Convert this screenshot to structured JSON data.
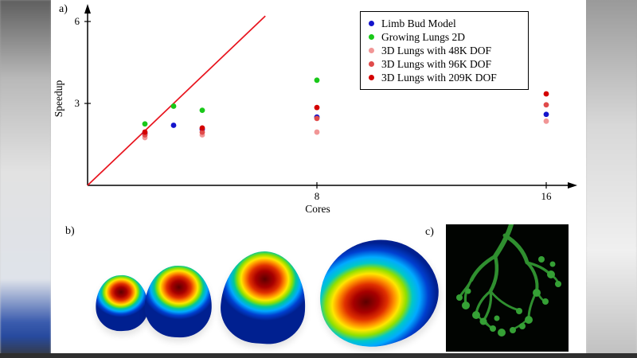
{
  "figure": {
    "panel_a_label": "a)",
    "panel_b_label": "b)",
    "panel_c_label": "c)"
  },
  "colors": {
    "ideal_line": "#e8141e",
    "panel_c_background": "#010401",
    "tree_green": "#2f8f2f",
    "figure_background": "#ffffff"
  },
  "chart_data": {
    "type": "scatter",
    "title": "",
    "xlabel": "Cores",
    "ylabel": "Speedup",
    "x_ticks": [
      8,
      16
    ],
    "y_ticks": [
      3,
      6
    ],
    "xlim": [
      0,
      17
    ],
    "ylim": [
      0,
      6.5
    ],
    "grid": false,
    "legend_position": "top-right",
    "ideal_line": {
      "from": [
        0,
        0
      ],
      "to": [
        6.2,
        6.2
      ],
      "color": "#e8141e"
    },
    "series": [
      {
        "name": "Limb Bud Model",
        "color": "#1414cc",
        "points": [
          [
            2,
            1.9
          ],
          [
            3,
            2.2
          ],
          [
            4,
            2.05
          ],
          [
            8,
            2.5
          ],
          [
            16,
            2.6
          ]
        ]
      },
      {
        "name": "Growing Lungs 2D",
        "color": "#19c819",
        "points": [
          [
            2,
            2.25
          ],
          [
            3,
            2.9
          ],
          [
            4,
            2.75
          ],
          [
            8,
            3.85
          ]
        ]
      },
      {
        "name": "3D Lungs with 48K DOF",
        "color": "#f19696",
        "points": [
          [
            2,
            1.75
          ],
          [
            4,
            1.85
          ],
          [
            8,
            1.95
          ],
          [
            16,
            2.35
          ]
        ]
      },
      {
        "name": "3D Lungs with 96K DOF",
        "color": "#e04b4b",
        "points": [
          [
            2,
            1.85
          ],
          [
            4,
            1.95
          ],
          [
            8,
            2.45
          ],
          [
            16,
            2.95
          ]
        ]
      },
      {
        "name": "3D Lungs with 209K DOF",
        "color": "#d40000",
        "points": [
          [
            2,
            1.95
          ],
          [
            4,
            2.1
          ],
          [
            8,
            2.85
          ],
          [
            16,
            3.35
          ]
        ]
      }
    ]
  }
}
